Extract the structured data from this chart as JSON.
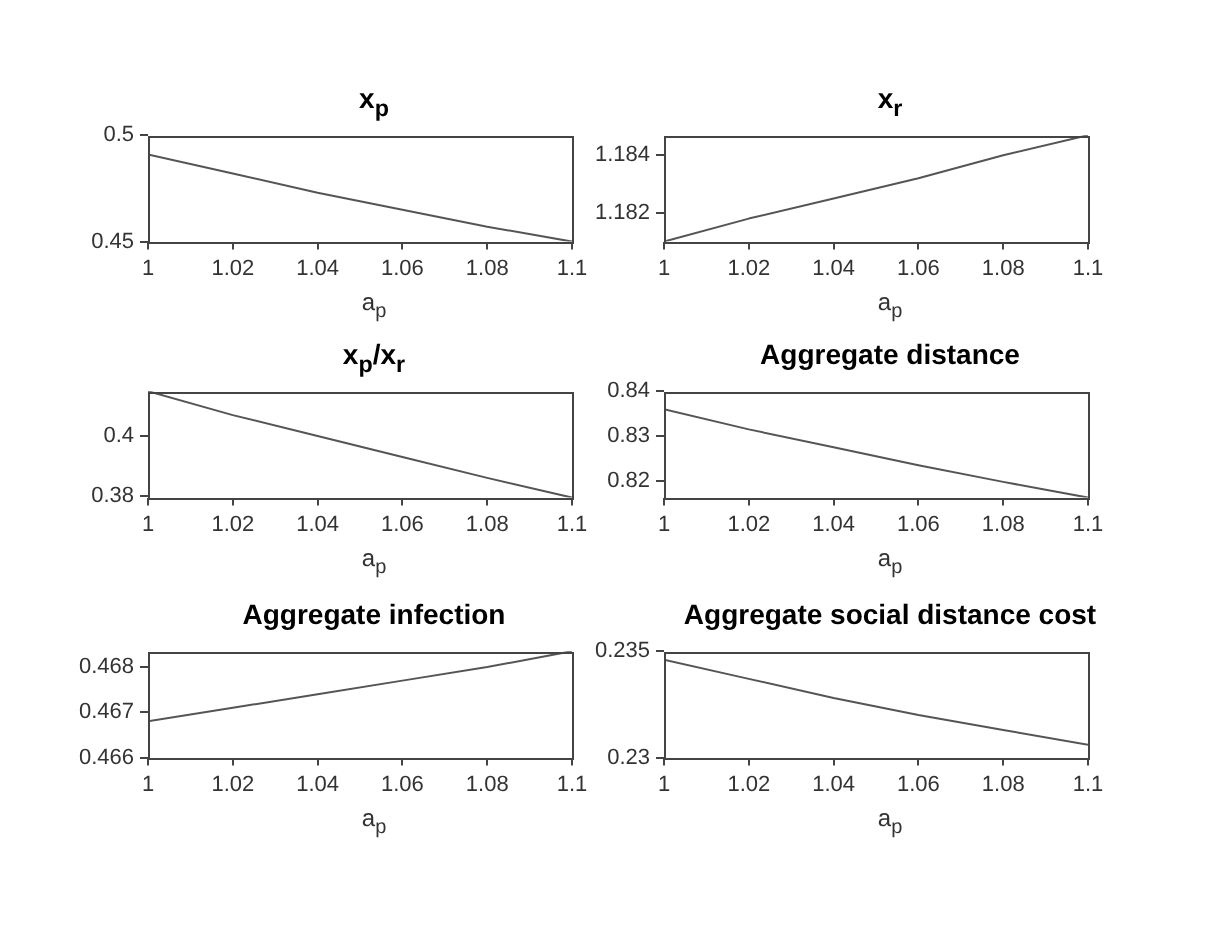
{
  "chart_data": [
    {
      "type": "line",
      "title": "x$_{p}$",
      "xlabel": "a$_{p}$",
      "x": [
        1,
        1.02,
        1.04,
        1.06,
        1.08,
        1.1
      ],
      "values": [
        0.491,
        0.482,
        0.473,
        0.465,
        0.457,
        0.45
      ],
      "color": "#555555",
      "xlim": [
        1,
        1.1
      ],
      "xticks": [
        1,
        1.02,
        1.04,
        1.06,
        1.08,
        1.1
      ],
      "ylim": [
        0.45,
        0.5
      ],
      "yticks": [
        0.45,
        0.5
      ]
    },
    {
      "type": "line",
      "title": "x$_{r}$",
      "xlabel": "a$_{p}$",
      "x": [
        1,
        1.02,
        1.04,
        1.06,
        1.08,
        1.1
      ],
      "values": [
        1.181,
        1.1818,
        1.1825,
        1.1832,
        1.184,
        1.1847
      ],
      "color": "#555555",
      "xlim": [
        1,
        1.1
      ],
      "xticks": [
        1,
        1.02,
        1.04,
        1.06,
        1.08,
        1.1
      ],
      "ylim": [
        1.181,
        1.1847
      ],
      "yticks": [
        1.182,
        1.184
      ]
    },
    {
      "type": "line",
      "title": "x$_{p}$/x$_{r}$",
      "xlabel": "a$_{p}$",
      "x": [
        1,
        1.02,
        1.04,
        1.06,
        1.08,
        1.1
      ],
      "values": [
        0.415,
        0.407,
        0.4,
        0.393,
        0.386,
        0.3794
      ],
      "color": "#555555",
      "xlim": [
        1,
        1.1
      ],
      "xticks": [
        1,
        1.02,
        1.04,
        1.06,
        1.08,
        1.1
      ],
      "ylim": [
        0.3794,
        0.415
      ],
      "yticks": [
        0.38,
        0.4
      ]
    },
    {
      "type": "line",
      "title": "Aggregate distance",
      "xlabel": "a$_{p}$",
      "x": [
        1,
        1.02,
        1.04,
        1.06,
        1.08,
        1.1
      ],
      "values": [
        0.836,
        0.8315,
        0.8275,
        0.8235,
        0.8198,
        0.8163
      ],
      "color": "#555555",
      "xlim": [
        1,
        1.1
      ],
      "xticks": [
        1,
        1.02,
        1.04,
        1.06,
        1.08,
        1.1
      ],
      "ylim": [
        0.8163,
        0.84
      ],
      "yticks": [
        0.82,
        0.83,
        0.84
      ]
    },
    {
      "type": "line",
      "title": "Aggregate infection",
      "xlabel": "a$_{p}$",
      "x": [
        1,
        1.02,
        1.04,
        1.06,
        1.08,
        1.1
      ],
      "values": [
        0.4668,
        0.4671,
        0.4674,
        0.4677,
        0.468,
        0.46835
      ],
      "color": "#555555",
      "xlim": [
        1,
        1.1
      ],
      "xticks": [
        1,
        1.02,
        1.04,
        1.06,
        1.08,
        1.1
      ],
      "ylim": [
        0.466,
        0.46835
      ],
      "yticks": [
        0.466,
        0.467,
        0.468
      ]
    },
    {
      "type": "line",
      "title": "Aggregate social distance cost",
      "xlabel": "a$_{p}$",
      "x": [
        1,
        1.02,
        1.04,
        1.06,
        1.08,
        1.1
      ],
      "values": [
        0.2346,
        0.2337,
        0.2328,
        0.232,
        0.2313,
        0.2306
      ],
      "color": "#555555",
      "xlim": [
        1,
        1.1
      ],
      "xticks": [
        1,
        1.02,
        1.04,
        1.06,
        1.08,
        1.1
      ],
      "ylim": [
        0.23,
        0.235
      ],
      "yticks": [
        0.23,
        0.235
      ]
    }
  ]
}
